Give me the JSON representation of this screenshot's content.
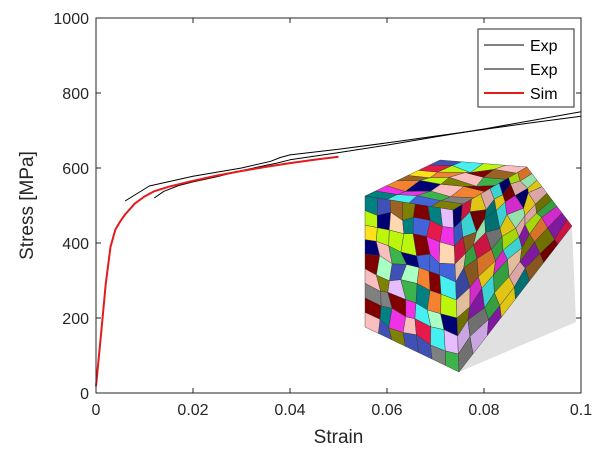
{
  "chart_data": {
    "type": "line",
    "xlabel": "Strain",
    "ylabel": "Stress [MPa]",
    "xlim": [
      0,
      0.1
    ],
    "ylim": [
      0,
      1000
    ],
    "xticks": [
      0,
      0.02,
      0.04,
      0.06,
      0.08,
      0.1
    ],
    "xtick_labels": [
      "0",
      "0.02",
      "0.04",
      "0.06",
      "0.08",
      "0.1"
    ],
    "yticks": [
      0,
      200,
      400,
      600,
      800,
      1000
    ],
    "ytick_labels": [
      "0",
      "200",
      "400",
      "600",
      "800",
      "1000"
    ],
    "grid": false,
    "legend_position": "top-right",
    "series": [
      {
        "name": "Exp",
        "color": "#000000",
        "points": [
          [
            0.006,
            512
          ],
          [
            0.008,
            528
          ],
          [
            0.011,
            552
          ],
          [
            0.02,
            578
          ],
          [
            0.03,
            600
          ],
          [
            0.036,
            618
          ],
          [
            0.038,
            628
          ],
          [
            0.04,
            635
          ],
          [
            0.05,
            650
          ],
          [
            0.06,
            667
          ],
          [
            0.07,
            685
          ],
          [
            0.08,
            703
          ],
          [
            0.09,
            721
          ],
          [
            0.1,
            738
          ]
        ]
      },
      {
        "name": "Exp",
        "color": "#000000",
        "points": [
          [
            0.012,
            520
          ],
          [
            0.014,
            538
          ],
          [
            0.017,
            553
          ],
          [
            0.02,
            563
          ],
          [
            0.025,
            577
          ],
          [
            0.03,
            593
          ],
          [
            0.035,
            607
          ],
          [
            0.037,
            612
          ],
          [
            0.04,
            622
          ],
          [
            0.05,
            641
          ],
          [
            0.06,
            661
          ],
          [
            0.07,
            683
          ],
          [
            0.08,
            704
          ],
          [
            0.09,
            727
          ],
          [
            0.1,
            750
          ]
        ]
      },
      {
        "name": "Sim",
        "color": "#e41a1c",
        "points": [
          [
            0,
            18
          ],
          [
            0.001,
            150
          ],
          [
            0.002,
            290
          ],
          [
            0.003,
            390
          ],
          [
            0.004,
            436
          ],
          [
            0.005,
            458
          ],
          [
            0.006,
            476
          ],
          [
            0.008,
            505
          ],
          [
            0.01,
            524
          ],
          [
            0.012,
            538
          ],
          [
            0.015,
            550
          ],
          [
            0.02,
            566
          ],
          [
            0.025,
            580
          ],
          [
            0.03,
            592
          ],
          [
            0.035,
            603
          ],
          [
            0.04,
            613
          ],
          [
            0.045,
            622
          ],
          [
            0.05,
            630
          ]
        ]
      }
    ]
  },
  "inset": {
    "description_icon": "polycrystal-grain-cube-icon",
    "palette": [
      "#e6194b",
      "#3cb44b",
      "#ffe119",
      "#4363d8",
      "#f58231",
      "#911eb4",
      "#46f0f0",
      "#f032e6",
      "#bcf60c",
      "#fabebe",
      "#008080",
      "#e6beff",
      "#9a6324",
      "#800000",
      "#aaffc3",
      "#808000",
      "#ffd8b1",
      "#000075",
      "#808080",
      "#3f51b5"
    ]
  }
}
